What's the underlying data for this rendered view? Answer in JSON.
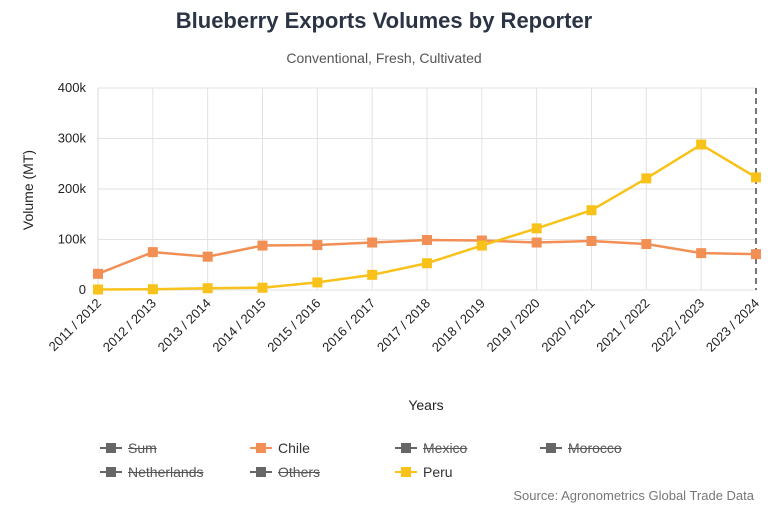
{
  "chart_data": {
    "type": "line",
    "title": "Blueberry Exports Volumes by Reporter",
    "subtitle": "Conventional, Fresh, Cultivated",
    "xlabel": "Years",
    "ylabel": "Volume (MT)",
    "ylim": [
      0,
      400000
    ],
    "yticks": [
      {
        "value": 0,
        "label": "0"
      },
      {
        "value": 100000,
        "label": "100k"
      },
      {
        "value": 200000,
        "label": "200k"
      },
      {
        "value": 300000,
        "label": "300k"
      },
      {
        "value": 400000,
        "label": "400k"
      }
    ],
    "categories": [
      "2011 / 2012",
      "2012 / 2013",
      "2013 / 2014",
      "2014 / 2015",
      "2015 / 2016",
      "2016 / 2017",
      "2017 / 2018",
      "2018 / 2019",
      "2019 / 2020",
      "2020 / 2021",
      "2021 / 2022",
      "2022 / 2023",
      "2023 / 2024"
    ],
    "grid": true,
    "series": [
      {
        "name": "Chile",
        "color": "#f28f55",
        "visible": true,
        "values": [
          32000,
          75000,
          66000,
          88000,
          89000,
          94000,
          99000,
          98000,
          94000,
          97000,
          91000,
          73000,
          71000
        ]
      },
      {
        "name": "Peru",
        "color": "#f8c21a",
        "visible": true,
        "values": [
          1000,
          1500,
          3500,
          4500,
          15000,
          30000,
          53000,
          88000,
          122000,
          158000,
          221000,
          288000,
          223000
        ]
      }
    ],
    "legend": [
      {
        "name": "Sum",
        "color": "#666666",
        "hidden": true
      },
      {
        "name": "Chile",
        "color": "#f28f55",
        "hidden": false
      },
      {
        "name": "Mexico",
        "color": "#666666",
        "hidden": true
      },
      {
        "name": "Morocco",
        "color": "#666666",
        "hidden": true
      },
      {
        "name": "Netherlands",
        "color": "#666666",
        "hidden": true
      },
      {
        "name": "Others",
        "color": "#666666",
        "hidden": true
      },
      {
        "name": "Peru",
        "color": "#f8c21a",
        "hidden": false
      }
    ],
    "legend_placement": "bottom",
    "source": "Source: Agronometrics Global Trade Data"
  }
}
